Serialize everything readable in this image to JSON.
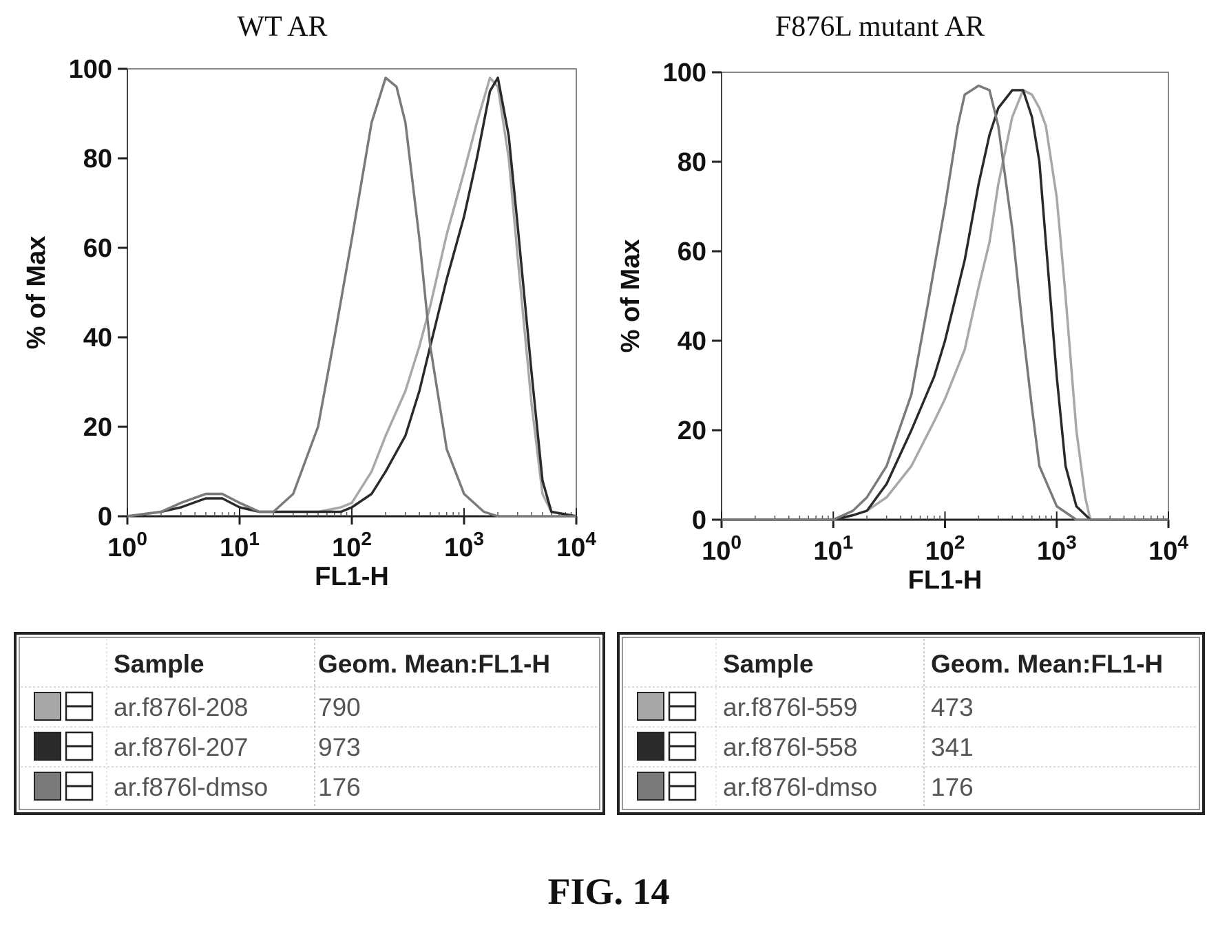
{
  "figure_label": "FIG. 14",
  "colors": {
    "light": "#a8a8a8",
    "dark": "#2a2a2a",
    "medium": "#7a7a7a"
  },
  "chart_data": [
    {
      "type": "line",
      "title": "WT AR",
      "xlabel": "FL1-H",
      "ylabel": "% of Max",
      "xscale": "log",
      "xlim": [
        1,
        10000
      ],
      "ylim": [
        0,
        100
      ],
      "x_ticks": [
        1,
        10,
        100,
        1000,
        10000
      ],
      "y_ticks": [
        0,
        20,
        40,
        60,
        80,
        100
      ],
      "series": [
        {
          "name": "ar.f876l-208",
          "color": "#a8a8a8",
          "x": [
            1,
            2,
            3,
            5,
            7,
            10,
            15,
            20,
            30,
            50,
            80,
            100,
            150,
            200,
            300,
            400,
            500,
            700,
            1000,
            1300,
            1700,
            2000,
            2500,
            3000,
            4000,
            5000,
            6000,
            10000
          ],
          "y": [
            0,
            1,
            3,
            5,
            5,
            3,
            1,
            1,
            1,
            1,
            2,
            3,
            10,
            18,
            28,
            38,
            47,
            63,
            77,
            88,
            98,
            96,
            80,
            58,
            25,
            5,
            1,
            0
          ]
        },
        {
          "name": "ar.f876l-207",
          "color": "#2a2a2a",
          "x": [
            1,
            2,
            3,
            5,
            7,
            10,
            15,
            20,
            30,
            50,
            80,
            100,
            150,
            200,
            300,
            400,
            500,
            700,
            1000,
            1300,
            1700,
            2000,
            2500,
            3000,
            4000,
            5000,
            6000,
            10000
          ],
          "y": [
            0,
            1,
            2,
            4,
            4,
            2,
            1,
            1,
            1,
            1,
            1,
            2,
            5,
            10,
            18,
            28,
            38,
            53,
            67,
            80,
            95,
            98,
            85,
            65,
            32,
            8,
            1,
            0
          ]
        },
        {
          "name": "ar.f876l-dmso",
          "color": "#7a7a7a",
          "x": [
            1,
            2,
            3,
            5,
            7,
            10,
            15,
            20,
            30,
            50,
            70,
            100,
            150,
            200,
            250,
            300,
            400,
            500,
            700,
            1000,
            1500,
            2000,
            10000
          ],
          "y": [
            0,
            1,
            3,
            5,
            5,
            3,
            1,
            1,
            5,
            20,
            40,
            62,
            88,
            98,
            96,
            88,
            62,
            38,
            15,
            5,
            1,
            0,
            0
          ]
        }
      ]
    },
    {
      "type": "line",
      "title": "F876L mutant AR",
      "xlabel": "FL1-H",
      "ylabel": "% of Max",
      "xscale": "log",
      "xlim": [
        1,
        10000
      ],
      "ylim": [
        0,
        100
      ],
      "x_ticks": [
        1,
        10,
        100,
        1000,
        10000
      ],
      "y_ticks": [
        0,
        20,
        40,
        60,
        80,
        100
      ],
      "series": [
        {
          "name": "ar.f876l-559",
          "color": "#a8a8a8",
          "x": [
            1,
            10,
            15,
            20,
            30,
            50,
            80,
            100,
            150,
            200,
            250,
            300,
            400,
            500,
            600,
            700,
            800,
            1000,
            1200,
            1500,
            1800,
            2000,
            10000
          ],
          "y": [
            0,
            0,
            1,
            2,
            5,
            12,
            22,
            27,
            38,
            52,
            62,
            75,
            90,
            96,
            95,
            92,
            88,
            72,
            50,
            20,
            5,
            0,
            0
          ]
        },
        {
          "name": "ar.f876l-558",
          "color": "#2a2a2a",
          "x": [
            1,
            10,
            15,
            20,
            30,
            50,
            80,
            100,
            150,
            200,
            250,
            300,
            400,
            500,
            600,
            700,
            800,
            1000,
            1200,
            1500,
            2000,
            10000
          ],
          "y": [
            0,
            0,
            1,
            2,
            8,
            20,
            32,
            40,
            58,
            75,
            86,
            92,
            96,
            96,
            90,
            80,
            62,
            32,
            12,
            3,
            0,
            0
          ]
        },
        {
          "name": "ar.f876l-dmso",
          "color": "#7a7a7a",
          "x": [
            1,
            10,
            15,
            20,
            30,
            50,
            70,
            100,
            130,
            150,
            200,
            250,
            300,
            400,
            500,
            600,
            700,
            1000,
            1500,
            10000
          ],
          "y": [
            0,
            0,
            2,
            5,
            12,
            28,
            48,
            70,
            88,
            95,
            97,
            96,
            88,
            65,
            42,
            25,
            12,
            3,
            0,
            0
          ]
        }
      ]
    }
  ],
  "legends": [
    {
      "header_sample": "Sample",
      "header_value": "Geom. Mean:FL1-H",
      "rows": [
        {
          "sample": "ar.f876l-208",
          "value": "790",
          "color": "#a8a8a8"
        },
        {
          "sample": "ar.f876l-207",
          "value": "973",
          "color": "#2a2a2a"
        },
        {
          "sample": "ar.f876l-dmso",
          "value": "176",
          "color": "#7a7a7a"
        }
      ]
    },
    {
      "header_sample": "Sample",
      "header_value": "Geom. Mean:FL1-H",
      "rows": [
        {
          "sample": "ar.f876l-559",
          "value": "473",
          "color": "#a8a8a8"
        },
        {
          "sample": "ar.f876l-558",
          "value": "341",
          "color": "#2a2a2a"
        },
        {
          "sample": "ar.f876l-dmso",
          "value": "176",
          "color": "#7a7a7a"
        }
      ]
    }
  ]
}
